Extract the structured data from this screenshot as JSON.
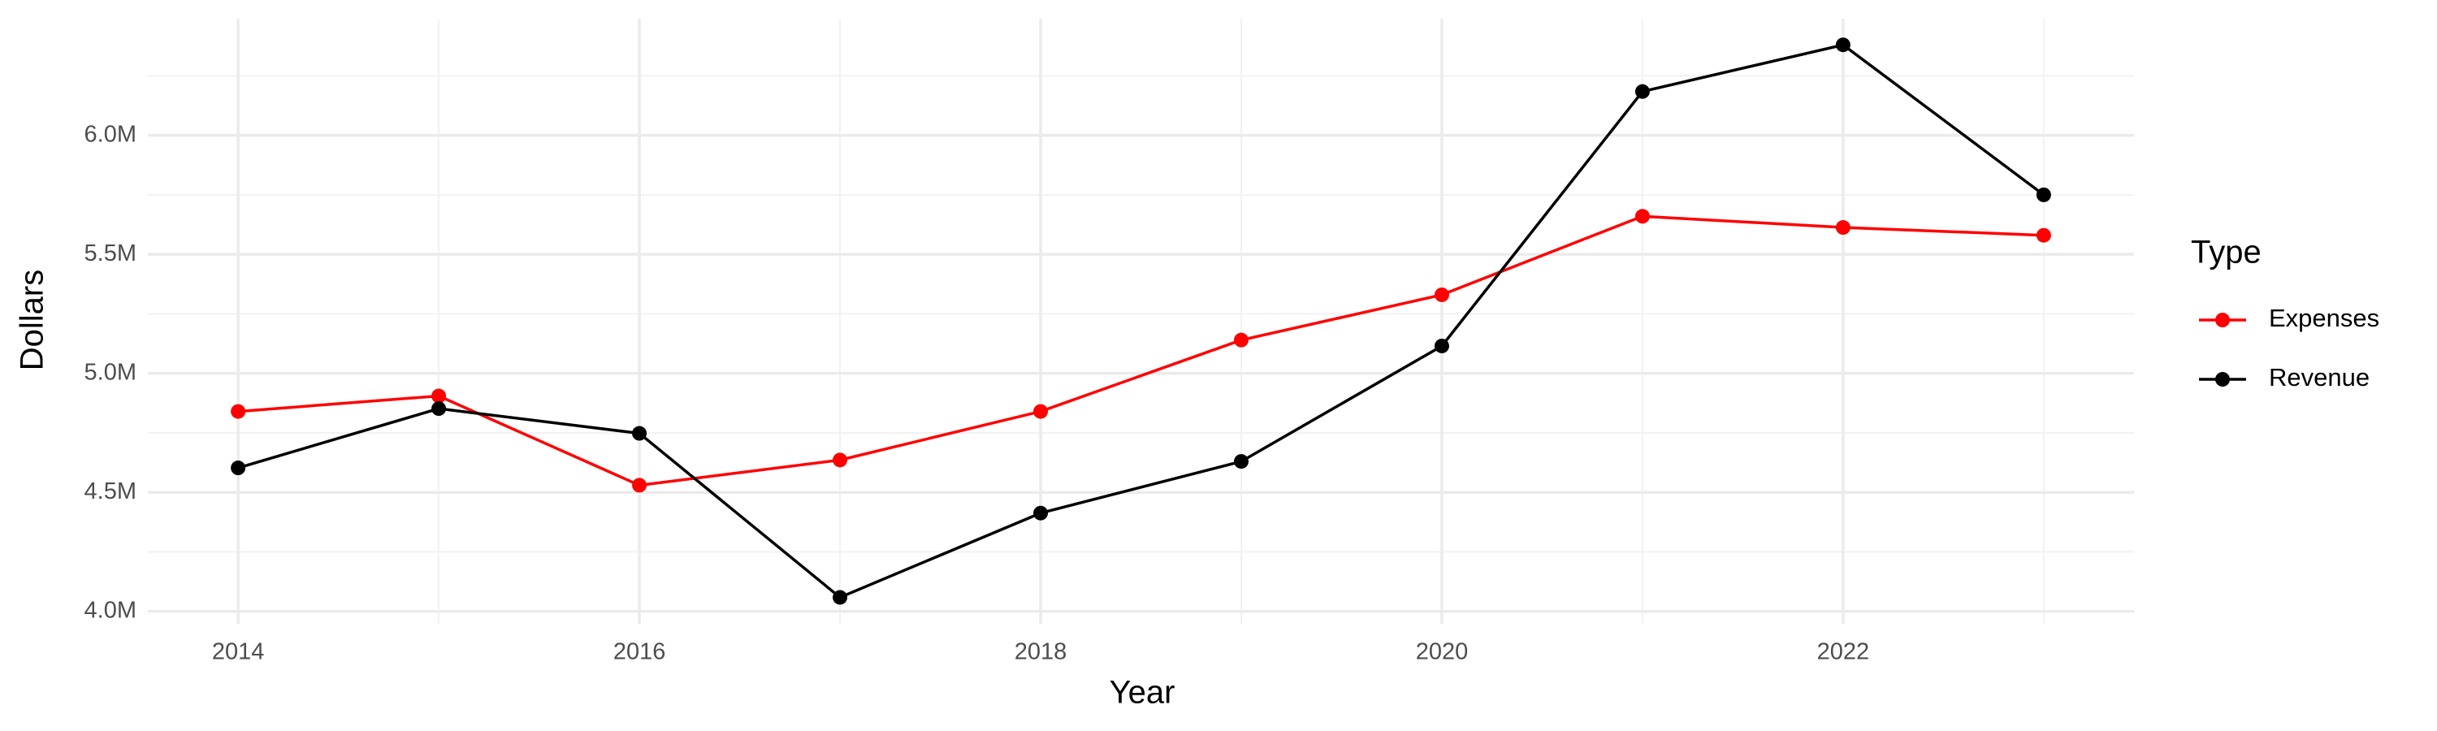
{
  "chart_data": {
    "type": "line",
    "x_label": "Year",
    "y_label": "Dollars",
    "x": [
      2014,
      2015,
      2016,
      2017,
      2018,
      2019,
      2020,
      2021,
      2022,
      2023
    ],
    "series": [
      {
        "name": "Expenses",
        "color": "#ff0000",
        "values": [
          4840000,
          4905000,
          4530000,
          4636000,
          4840000,
          5140000,
          5330000,
          5660000,
          5613000,
          5580000
        ]
      },
      {
        "name": "Revenue",
        "color": "#000000",
        "values": [
          4603000,
          4852000,
          4748000,
          4059000,
          4413000,
          4630000,
          5115000,
          6184000,
          6380000,
          5750000
        ]
      }
    ],
    "xlim": [
      2013.55,
      2023.45
    ],
    "xticks": [
      2014,
      2016,
      2018,
      2020,
      2022
    ],
    "ylim": [
      3948000,
      6490000
    ],
    "yticks": [
      {
        "value": 4000000,
        "label": "4.0M"
      },
      {
        "value": 4500000,
        "label": "4.5M"
      },
      {
        "value": 5000000,
        "label": "5.0M"
      },
      {
        "value": 5500000,
        "label": "5.5M"
      },
      {
        "value": 6000000,
        "label": "6.0M"
      }
    ],
    "grid": true,
    "legend_title": "Type",
    "legend": "right"
  }
}
